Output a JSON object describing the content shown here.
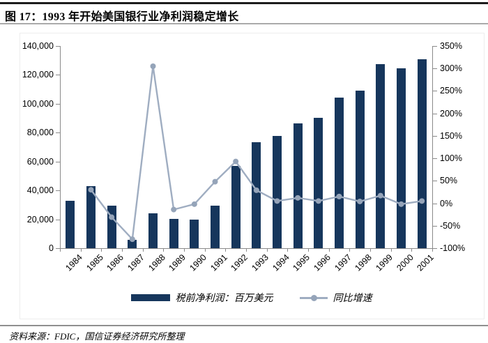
{
  "figure": {
    "title": "图 17：1993 年开始美国银行业净利润稳定增长",
    "source": "资料来源：FDIC，国信证券经济研究所整理"
  },
  "legend": {
    "bar_label": "税前净利润：百万美元",
    "line_label": "同比增速"
  },
  "colors": {
    "bar": "#16365c",
    "line": "#9fadc1",
    "marker": "#95a4b9",
    "axis": "#8a8a8a",
    "title_text": "#000000",
    "rule_dark": "#1c1c1c",
    "rule_gray": "#aaaaaa"
  },
  "chart_data": {
    "type": "bar",
    "title": "1993 年开始美国银行业净利润稳定增长",
    "categories": [
      "1984",
      "1985",
      "1986",
      "1987",
      "1988",
      "1989",
      "1990",
      "1991",
      "1992",
      "1993",
      "1994",
      "1995",
      "1996",
      "1997",
      "1998",
      "1999",
      "2000",
      "2001"
    ],
    "series": [
      {
        "name": "税前净利润：百万美元",
        "type": "bar",
        "yaxis": "left",
        "values": [
          33000,
          43000,
          29500,
          5900,
          24000,
          20500,
          20000,
          29500,
          57000,
          73500,
          77500,
          86500,
          90500,
          104500,
          109000,
          127500,
          124500,
          131000
        ]
      },
      {
        "name": "同比增速",
        "type": "line",
        "yaxis": "right",
        "values": [
          null,
          30,
          -31,
          -80,
          305,
          -14,
          -2,
          48,
          93,
          29,
          5,
          12,
          5,
          15,
          4,
          17,
          -2,
          5
        ]
      }
    ],
    "left_axis": {
      "min": 0,
      "max": 140000,
      "step": 20000,
      "tick_labels": [
        "0",
        "20,000",
        "40,000",
        "60,000",
        "80,000",
        "100,000",
        "120,000",
        "140,000"
      ]
    },
    "right_axis": {
      "min": -100,
      "max": 350,
      "step": 50,
      "unit": "%",
      "tick_labels": [
        "-100%",
        "-50%",
        "0%",
        "50%",
        "100%",
        "150%",
        "200%",
        "250%",
        "300%",
        "350%"
      ]
    },
    "grid": false,
    "legend_position": "bottom"
  }
}
